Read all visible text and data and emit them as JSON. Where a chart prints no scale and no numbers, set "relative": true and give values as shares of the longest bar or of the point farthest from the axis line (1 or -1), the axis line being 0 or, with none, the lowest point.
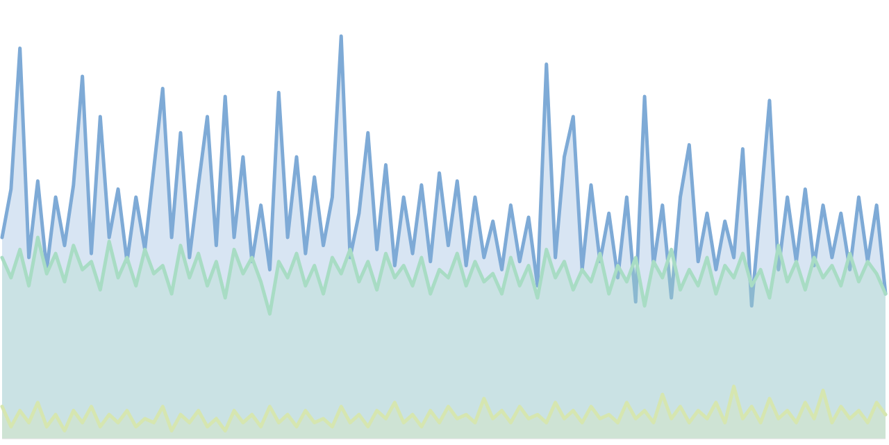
{
  "chart_data": {
    "type": "area",
    "relative": true,
    "categories": [
      null,
      null,
      null,
      null,
      null,
      null,
      null,
      null,
      null,
      null,
      null,
      null,
      null,
      null,
      null,
      null,
      null,
      null,
      null,
      null,
      null,
      null,
      null,
      null,
      null,
      null,
      null,
      null,
      null,
      null,
      null,
      null,
      null,
      null,
      null,
      null,
      null,
      null,
      null,
      null,
      null,
      null,
      null,
      null,
      null,
      null,
      null,
      null,
      null,
      null,
      null,
      null,
      null,
      null,
      null,
      null,
      null,
      null,
      null,
      null,
      null,
      null,
      null,
      null,
      null,
      null,
      null,
      null,
      null,
      null,
      null,
      null,
      null,
      null,
      null,
      null,
      null,
      null,
      null,
      null,
      null,
      null,
      null,
      null,
      null,
      null,
      null,
      null,
      null,
      null,
      null,
      null,
      null,
      null,
      null,
      null,
      null,
      null,
      null,
      null
    ],
    "series": [
      {
        "color": "#7eaad6",
        "values": [
          0.5,
          0.62,
          0.97,
          0.45,
          0.64,
          0.42,
          0.6,
          0.48,
          0.63,
          0.9,
          0.46,
          0.8,
          0.5,
          0.62,
          0.44,
          0.6,
          0.47,
          0.67,
          0.87,
          0.5,
          0.76,
          0.45,
          0.63,
          0.8,
          0.48,
          0.85,
          0.5,
          0.7,
          0.44,
          0.58,
          0.42,
          0.86,
          0.5,
          0.7,
          0.46,
          0.65,
          0.48,
          0.6,
          1.0,
          0.45,
          0.56,
          0.76,
          0.47,
          0.68,
          0.43,
          0.6,
          0.46,
          0.63,
          0.44,
          0.66,
          0.48,
          0.64,
          0.43,
          0.6,
          0.45,
          0.54,
          0.42,
          0.58,
          0.44,
          0.55,
          0.38,
          0.93,
          0.45,
          0.7,
          0.8,
          0.42,
          0.63,
          0.44,
          0.56,
          0.4,
          0.6,
          0.34,
          0.85,
          0.43,
          0.58,
          0.35,
          0.6,
          0.73,
          0.44,
          0.56,
          0.42,
          0.54,
          0.45,
          0.72,
          0.33,
          0.58,
          0.84,
          0.42,
          0.6,
          0.44,
          0.62,
          0.43,
          0.58,
          0.45,
          0.56,
          0.42,
          0.6,
          0.44,
          0.58,
          0.36
        ]
      },
      {
        "color": "#a8dcc4",
        "values": [
          0.45,
          0.4,
          0.47,
          0.38,
          0.5,
          0.41,
          0.46,
          0.39,
          0.48,
          0.42,
          0.44,
          0.37,
          0.49,
          0.4,
          0.45,
          0.38,
          0.47,
          0.41,
          0.43,
          0.36,
          0.48,
          0.4,
          0.46,
          0.38,
          0.44,
          0.35,
          0.47,
          0.41,
          0.45,
          0.39,
          0.31,
          0.44,
          0.4,
          0.46,
          0.38,
          0.43,
          0.36,
          0.45,
          0.41,
          0.47,
          0.39,
          0.44,
          0.37,
          0.46,
          0.4,
          0.43,
          0.38,
          0.45,
          0.36,
          0.42,
          0.4,
          0.46,
          0.38,
          0.44,
          0.39,
          0.41,
          0.36,
          0.45,
          0.38,
          0.43,
          0.35,
          0.47,
          0.4,
          0.44,
          0.37,
          0.42,
          0.39,
          0.46,
          0.36,
          0.43,
          0.39,
          0.45,
          0.33,
          0.44,
          0.4,
          0.47,
          0.37,
          0.42,
          0.38,
          0.45,
          0.36,
          0.43,
          0.4,
          0.46,
          0.38,
          0.42,
          0.35,
          0.48,
          0.39,
          0.44,
          0.37,
          0.45,
          0.4,
          0.43,
          0.38,
          0.46,
          0.39,
          0.44,
          0.41,
          0.36
        ]
      },
      {
        "color": "#d6e6b0",
        "values": [
          0.08,
          0.03,
          0.07,
          0.04,
          0.09,
          0.03,
          0.06,
          0.02,
          0.07,
          0.04,
          0.08,
          0.03,
          0.06,
          0.04,
          0.07,
          0.03,
          0.05,
          0.04,
          0.08,
          0.02,
          0.06,
          0.04,
          0.07,
          0.03,
          0.05,
          0.02,
          0.07,
          0.04,
          0.06,
          0.03,
          0.08,
          0.04,
          0.06,
          0.03,
          0.07,
          0.04,
          0.05,
          0.03,
          0.08,
          0.04,
          0.06,
          0.03,
          0.07,
          0.05,
          0.09,
          0.04,
          0.06,
          0.03,
          0.07,
          0.04,
          0.08,
          0.05,
          0.06,
          0.04,
          0.1,
          0.05,
          0.07,
          0.04,
          0.08,
          0.05,
          0.06,
          0.04,
          0.09,
          0.05,
          0.07,
          0.04,
          0.08,
          0.05,
          0.06,
          0.04,
          0.09,
          0.05,
          0.07,
          0.04,
          0.11,
          0.05,
          0.08,
          0.04,
          0.07,
          0.05,
          0.09,
          0.04,
          0.13,
          0.05,
          0.08,
          0.04,
          0.1,
          0.05,
          0.07,
          0.04,
          0.09,
          0.05,
          0.12,
          0.04,
          0.08,
          0.05,
          0.07,
          0.04,
          0.09,
          0.06
        ]
      }
    ]
  }
}
